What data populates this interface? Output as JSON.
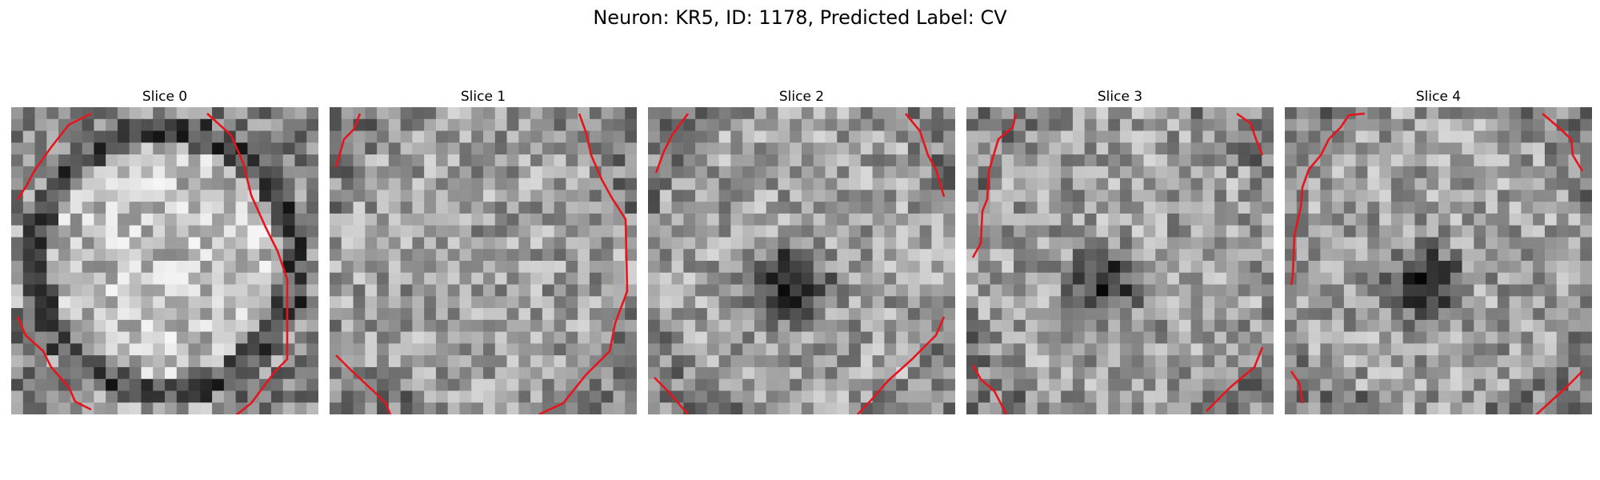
{
  "figure": {
    "suptitle": "Neuron: KR5, ID: 1178, Predicted Label: CV",
    "contour_color": "#e8141c",
    "colormap": "gray"
  },
  "panels": [
    {
      "title": "Slice 0",
      "ring_brightness": 0.82,
      "center_darkness": 0.0
    },
    {
      "title": "Slice 1",
      "ring_brightness": 0.0,
      "center_darkness": 0.0
    },
    {
      "title": "Slice 2",
      "ring_brightness": 0.0,
      "center_darkness": 0.75
    },
    {
      "title": "Slice 3",
      "ring_brightness": 0.0,
      "center_darkness": 0.55
    },
    {
      "title": "Slice 4",
      "ring_brightness": 0.0,
      "center_darkness": 0.65
    }
  ]
}
